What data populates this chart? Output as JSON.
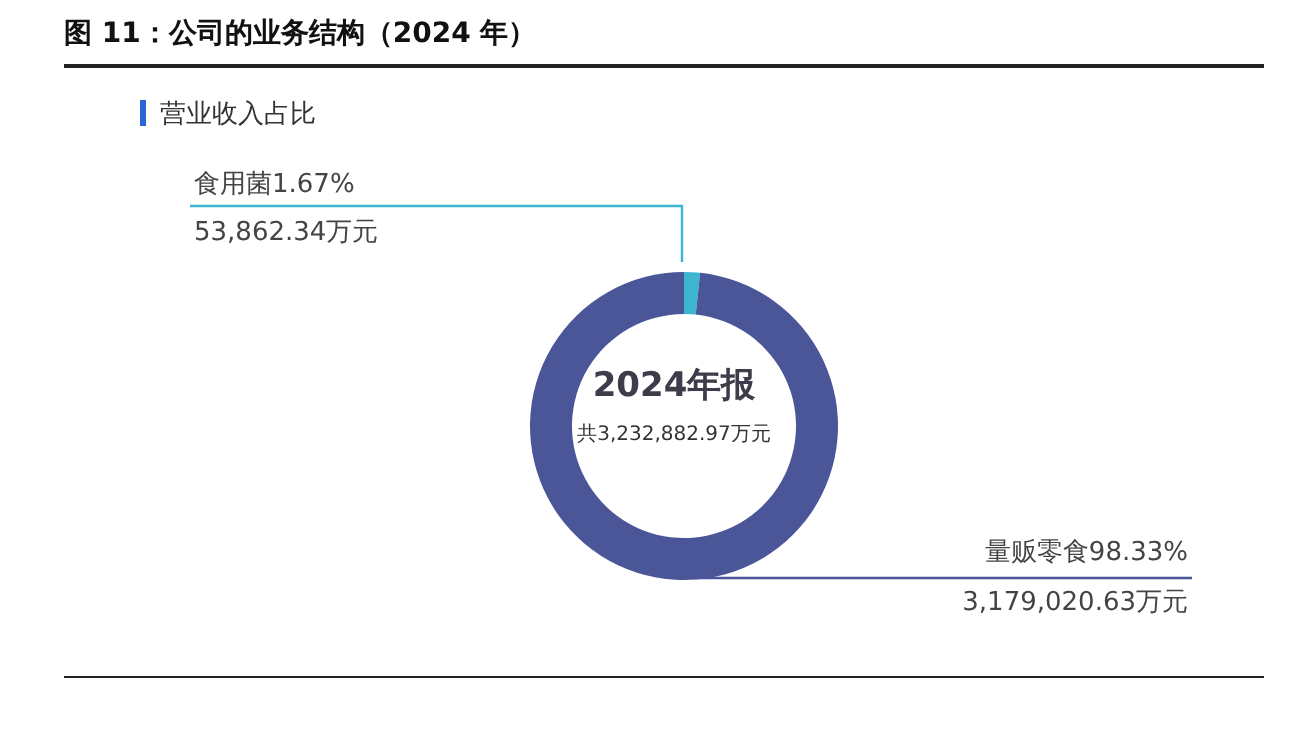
{
  "chart_data": {
    "type": "donut",
    "title": "图 11：公司的业务结构（2024 年）",
    "subtitle": "营业收入占比",
    "categories": [
      "食用菌",
      "量贩零食"
    ],
    "values": [
      1.67,
      98.33
    ],
    "value_labels": [
      "1.67%",
      "98.33%"
    ],
    "colors": [
      "#3cb6cf",
      "#4b5699"
    ],
    "annotations": [
      "2024年报",
      "共3,232,882.97万元",
      "53,862.34万元",
      "3,179,020.63万元"
    ],
    "legend": false
  }
}
